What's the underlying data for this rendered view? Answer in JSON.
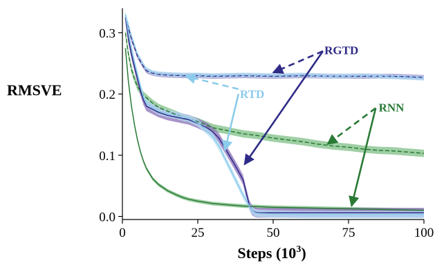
{
  "chart_data": {
    "type": "line",
    "xlabel": "Steps (10",
    "xlabel_sup": "3",
    "xlabel_close": ")",
    "ylabel": "RMSVE",
    "xlim": [
      0,
      100
    ],
    "ylim": [
      -0.005,
      0.34
    ],
    "xticks": [
      0,
      25,
      50,
      75,
      100
    ],
    "xtick_labels": [
      "0",
      "25",
      "50",
      "75",
      "100"
    ],
    "yticks": [
      0.0,
      0.1,
      0.2,
      0.3
    ],
    "ytick_labels": [
      "0.0",
      "0.1",
      "0.2",
      "0.3"
    ],
    "grid": false,
    "colors": {
      "RGTD": "#2e2a86",
      "RTD": "#8ccbeb",
      "RNN": "#2a7a36",
      "RGTD_band": "#8a6fb8",
      "RTD_band": "#b8e0f5",
      "RNN_band": "#7fbf86"
    },
    "series": [
      {
        "key": "rgtd_solid",
        "group": "RGTD",
        "dash": false,
        "band": 0.008,
        "x": [
          1,
          2,
          3,
          4,
          5,
          6,
          7,
          8,
          10,
          12,
          15,
          18,
          20,
          22,
          25,
          28,
          30,
          32,
          34,
          36,
          38,
          40,
          41,
          42,
          43,
          44,
          45,
          50,
          60,
          70,
          80,
          90,
          100
        ],
        "y": [
          0.325,
          0.29,
          0.265,
          0.245,
          0.225,
          0.205,
          0.19,
          0.18,
          0.175,
          0.17,
          0.165,
          0.162,
          0.16,
          0.158,
          0.152,
          0.145,
          0.138,
          0.128,
          0.112,
          0.095,
          0.078,
          0.06,
          0.04,
          0.02,
          0.01,
          0.007,
          0.006,
          0.006,
          0.006,
          0.006,
          0.006,
          0.006,
          0.006
        ]
      },
      {
        "key": "rgtd_dashed",
        "group": "RGTD",
        "dash": true,
        "band": 0.004,
        "x": [
          1,
          3,
          5,
          7,
          8,
          10,
          12,
          15,
          20,
          25,
          30,
          40,
          50,
          60,
          70,
          80,
          90,
          100
        ],
        "y": [
          0.325,
          0.29,
          0.262,
          0.245,
          0.238,
          0.234,
          0.232,
          0.231,
          0.23,
          0.23,
          0.229,
          0.23,
          0.229,
          0.23,
          0.229,
          0.229,
          0.229,
          0.227
        ]
      },
      {
        "key": "rtd_solid",
        "group": "RTD",
        "dash": false,
        "band": 0.006,
        "x": [
          1,
          2,
          3,
          4,
          5,
          6,
          7,
          8,
          10,
          12,
          15,
          18,
          20,
          22,
          25,
          28,
          30,
          32,
          34,
          36,
          38,
          40,
          42,
          43,
          44,
          45,
          50,
          60,
          70,
          80,
          90,
          100
        ],
        "y": [
          0.33,
          0.3,
          0.275,
          0.252,
          0.232,
          0.212,
          0.195,
          0.185,
          0.178,
          0.172,
          0.168,
          0.165,
          0.162,
          0.16,
          0.153,
          0.14,
          0.13,
          0.115,
          0.095,
          0.075,
          0.055,
          0.035,
          0.018,
          0.01,
          0.006,
          0.005,
          0.004,
          0.003,
          0.003,
          0.003,
          0.003,
          0.003
        ]
      },
      {
        "key": "rtd_dashed",
        "group": "RTD",
        "dash": true,
        "band": 0.004,
        "x": [
          1,
          3,
          5,
          7,
          8,
          10,
          12,
          15,
          20,
          25,
          30,
          40,
          50,
          60,
          70,
          80,
          90,
          100
        ],
        "y": [
          0.33,
          0.295,
          0.265,
          0.247,
          0.24,
          0.235,
          0.233,
          0.232,
          0.231,
          0.231,
          0.23,
          0.231,
          0.23,
          0.231,
          0.229,
          0.23,
          0.228,
          0.226
        ]
      },
      {
        "key": "rnn_dashed",
        "group": "RNN",
        "dash": true,
        "band": 0.006,
        "x": [
          1,
          2,
          3,
          4,
          5,
          7,
          10,
          12,
          15,
          20,
          25,
          30,
          35,
          40,
          45,
          50,
          55,
          60,
          65,
          70,
          75,
          80,
          85,
          90,
          95,
          100
        ],
        "y": [
          0.3,
          0.265,
          0.24,
          0.225,
          0.212,
          0.198,
          0.185,
          0.178,
          0.172,
          0.162,
          0.155,
          0.145,
          0.14,
          0.135,
          0.132,
          0.128,
          0.125,
          0.122,
          0.118,
          0.115,
          0.113,
          0.11,
          0.108,
          0.107,
          0.105,
          0.103
        ]
      },
      {
        "key": "rnn_solid",
        "group": "RNN",
        "dash": false,
        "band": 0.003,
        "x": [
          1,
          2,
          3,
          4,
          5,
          6,
          7,
          8,
          10,
          12,
          15,
          18,
          20,
          22,
          25,
          30,
          35,
          40,
          45,
          50,
          60,
          70,
          80,
          90,
          100
        ],
        "y": [
          0.275,
          0.22,
          0.18,
          0.15,
          0.125,
          0.105,
          0.09,
          0.078,
          0.062,
          0.052,
          0.042,
          0.035,
          0.031,
          0.028,
          0.025,
          0.021,
          0.019,
          0.017,
          0.016,
          0.015,
          0.014,
          0.013,
          0.012,
          0.011,
          0.01
        ]
      }
    ],
    "annotations": [
      {
        "text": "RGTD",
        "group": "RGTD",
        "text_x": 67,
        "text_y": 0.272,
        "arrows": [
          {
            "from": [
              66.5,
              0.27
            ],
            "to": [
              50,
              0.235
            ],
            "dash": true
          },
          {
            "from": [
              66.5,
              0.27
            ],
            "to": [
              40.5,
              0.085
            ],
            "dash": false
          }
        ]
      },
      {
        "text": "RTD",
        "group": "RTD",
        "text_x": 39,
        "text_y": 0.2,
        "arrows": [
          {
            "from": [
              38.5,
              0.208
            ],
            "to": [
              21,
              0.229
            ],
            "dash": true
          },
          {
            "from": [
              38.5,
              0.2
            ],
            "to": [
              34,
              0.108
            ],
            "dash": false
          }
        ]
      },
      {
        "text": "RNN",
        "group": "RNN",
        "text_x": 85,
        "text_y": 0.178,
        "arrows": [
          {
            "from": [
              84,
              0.177
            ],
            "to": [
              68,
              0.118
            ],
            "dash": true
          },
          {
            "from": [
              84,
              0.177
            ],
            "to": [
              76,
              0.017
            ],
            "dash": false
          }
        ]
      }
    ]
  }
}
